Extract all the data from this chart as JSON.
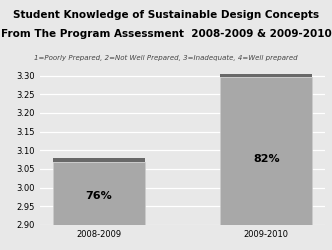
{
  "title_line1": "Student Knowledge of Sustainable Design Concepts",
  "title_line2": "From The Program Assessment  2008-2009 & 2009-2010",
  "subtitle": "1=Poorly Prepared, 2=Not Well Prepared, 3=Inadequate, 4=Well prepared",
  "categories": [
    "2008-2009",
    "2009-2010"
  ],
  "values": [
    3.07,
    3.295
  ],
  "labels": [
    "76%",
    "82%"
  ],
  "bar_color_main": "#a8a8a8",
  "bar_color_top": "#686868",
  "ylim_min": 2.9,
  "ylim_max": 3.3,
  "yticks": [
    2.9,
    2.95,
    3.0,
    3.05,
    3.1,
    3.15,
    3.2,
    3.25,
    3.3
  ],
  "background_color": "#e8e8e8",
  "title_fontsize": 7.5,
  "subtitle_fontsize": 5.0,
  "label_fontsize": 8,
  "tick_fontsize": 6.0,
  "bar_width": 0.55
}
